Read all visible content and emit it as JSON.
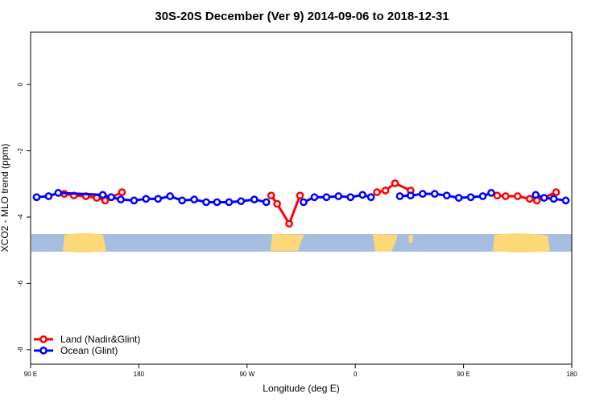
{
  "chart_data": {
    "type": "line",
    "title": "30S-20S December (Ver 9)   2014-09-06 to 2018-12-31",
    "x_label": "Longitude (deg E)",
    "y_label": "XCO2 - MLO trend (ppm)",
    "xlim": [
      90,
      540
    ],
    "xticks": [
      {
        "value": 90,
        "label": "90 E"
      },
      180,
      {
        "value": 270,
        "label": "90 W"
      },
      {
        "value": 360,
        "label": "0"
      },
      {
        "value": 450,
        "label": "90 E"
      },
      {
        "value": 540,
        "label": "180"
      }
    ],
    "ylim": [
      -8.44,
      1.58
    ],
    "yticks": [
      0,
      -2,
      -4,
      -6,
      -8
    ],
    "legend": "bottom-left",
    "series": [
      {
        "name": "Land (Nadir&Glint)",
        "color": "#ff0000",
        "x": [
          118,
          126,
          136,
          145,
          152,
          166,
          null,
          290,
          295,
          305,
          314,
          null,
          378,
          385,
          393,
          406,
          null,
          478,
          485,
          495,
          505,
          511,
          527
        ],
        "values": [
          -3.3,
          -3.35,
          -3.37,
          -3.42,
          -3.5,
          -3.25,
          null,
          -3.35,
          -3.6,
          -4.2,
          -3.35,
          null,
          -3.25,
          -3.2,
          -2.98,
          -3.2,
          null,
          -3.35,
          -3.37,
          -3.37,
          -3.45,
          -3.5,
          -3.25
        ]
      },
      {
        "name": "Ocean (Glint)",
        "color": "#0000ff",
        "x": [
          95,
          105,
          113,
          150,
          157,
          165,
          176,
          186,
          196,
          206,
          216,
          226,
          236,
          245,
          255,
          265,
          276,
          286,
          null,
          317,
          326,
          336,
          346,
          356,
          366,
          373,
          null,
          397,
          406,
          416,
          426,
          436,
          446,
          456,
          466,
          473,
          null,
          510,
          517,
          525,
          535
        ],
        "values": [
          -3.4,
          -3.37,
          -3.27,
          -3.33,
          -3.4,
          -3.47,
          -3.5,
          -3.45,
          -3.45,
          -3.37,
          -3.5,
          -3.47,
          -3.55,
          -3.55,
          -3.55,
          -3.52,
          -3.47,
          -3.55,
          null,
          -3.55,
          -3.4,
          -3.4,
          -3.37,
          -3.4,
          -3.33,
          -3.4,
          null,
          -3.37,
          -3.35,
          -3.3,
          -3.3,
          -3.35,
          -3.42,
          -3.4,
          -3.37,
          -3.27,
          null,
          -3.33,
          -3.42,
          -3.45,
          -3.5
        ]
      }
    ]
  }
}
